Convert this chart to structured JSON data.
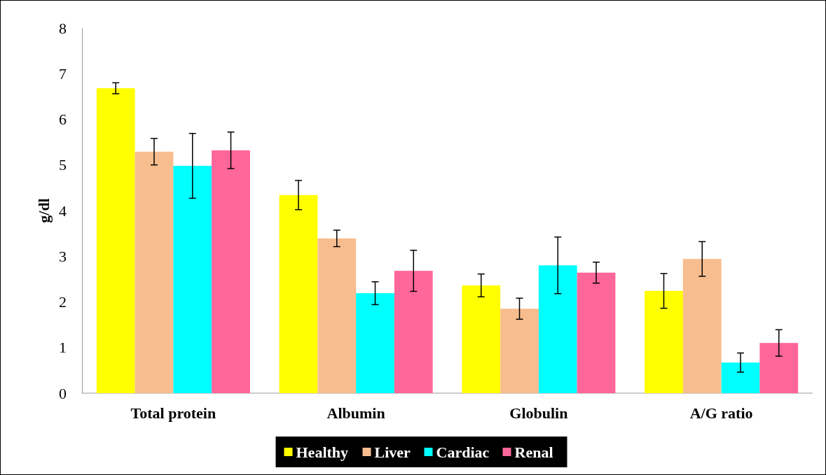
{
  "chart_data": {
    "type": "bar",
    "ylabel": "g/dl",
    "categories": [
      "Total protein",
      "Albumin",
      "Globulin",
      "A/G ratio"
    ],
    "ylim": [
      0,
      8
    ],
    "yticks": [
      0,
      1,
      2,
      3,
      4,
      5,
      6,
      7,
      8
    ],
    "grid": false,
    "legend": "bottom",
    "series": [
      {
        "name": "Healthy",
        "color": "#ffff00",
        "values": [
          6.68,
          4.34,
          2.36,
          2.24
        ],
        "errors": [
          0.12,
          0.32,
          0.25,
          0.38
        ]
      },
      {
        "name": "Liver",
        "color": "#f8bd8e",
        "values": [
          5.29,
          3.39,
          1.85,
          2.94
        ],
        "errors": [
          0.29,
          0.18,
          0.23,
          0.38
        ]
      },
      {
        "name": "Cardiac",
        "color": "#00ffff",
        "values": [
          4.98,
          2.19,
          2.8,
          0.67
        ],
        "errors": [
          0.71,
          0.25,
          0.62,
          0.21
        ]
      },
      {
        "name": "Renal",
        "color": "#ff6699",
        "values": [
          5.32,
          2.68,
          2.64,
          1.1
        ],
        "errors": [
          0.4,
          0.45,
          0.23,
          0.29
        ]
      }
    ]
  }
}
